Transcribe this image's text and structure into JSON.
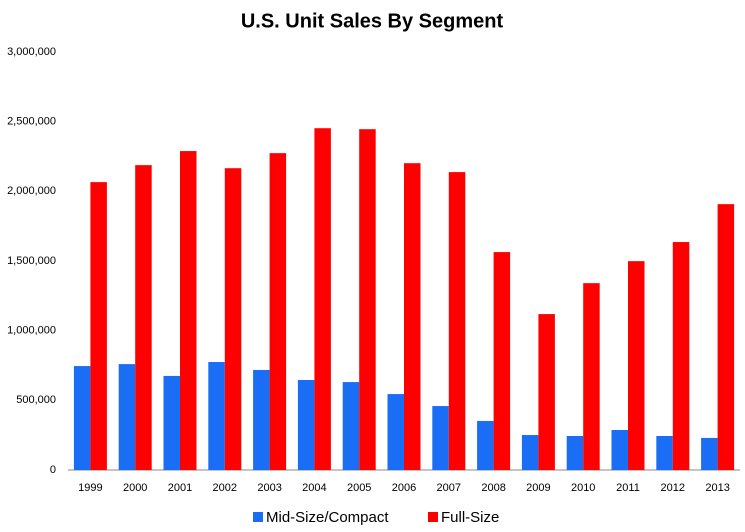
{
  "chart_data": {
    "type": "bar",
    "title": "U.S. Unit Sales By Segment",
    "categories": [
      "1999",
      "2000",
      "2001",
      "2002",
      "2003",
      "2004",
      "2005",
      "2006",
      "2007",
      "2008",
      "2009",
      "2010",
      "2011",
      "2012",
      "2013"
    ],
    "series": [
      {
        "name": "Mid-Size/Compact",
        "color": "#1a6ef5",
        "values": [
          746000,
          760000,
          675000,
          775000,
          718000,
          646000,
          631000,
          545000,
          459000,
          352000,
          251000,
          244000,
          287000,
          244000,
          230000
        ]
      },
      {
        "name": "Full-Size",
        "color": "#ff0000",
        "values": [
          2066000,
          2188000,
          2289000,
          2166000,
          2274000,
          2453000,
          2446000,
          2202000,
          2138000,
          1564000,
          1119000,
          1341000,
          1499000,
          1636000,
          1908000
        ]
      }
    ],
    "ylim": [
      0,
      3000000
    ],
    "yticks": [
      0,
      {
        "value": 500000,
        "label": "500,000"
      },
      {
        "value": 1000000,
        "label": "1,000,000"
      },
      {
        "value": 1500000,
        "label": "1,500,000"
      },
      {
        "value": 2000000,
        "label": "2,000,000"
      },
      {
        "value": 2500000,
        "label": "2,500,000"
      },
      {
        "value": 3000000,
        "label": "3,000,000"
      }
    ],
    "grid": false,
    "legend": "bottom"
  }
}
